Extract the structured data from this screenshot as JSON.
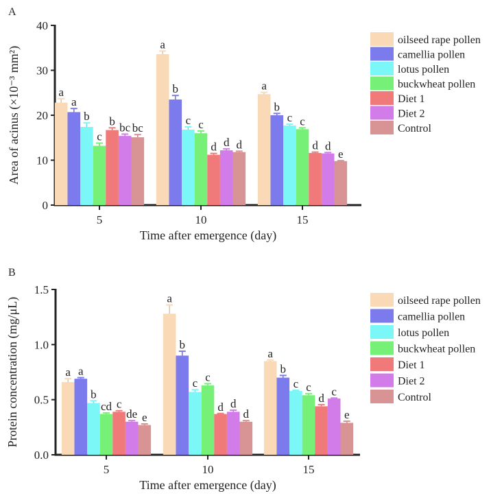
{
  "chart_data": [
    {
      "panel": "A",
      "type": "bar",
      "title": "",
      "xlabel": "Time after emergence (day)",
      "ylabel": "Area of acinus (×10⁻³ mm²)",
      "ylim": [
        0,
        40
      ],
      "yticks": [
        0,
        10,
        20,
        30,
        40
      ],
      "ytick_labels": [
        "0",
        "10",
        "20",
        "30",
        "40"
      ],
      "categories": [
        "5",
        "10",
        "15"
      ],
      "legend_position": "right",
      "series": [
        {
          "name": "oilseed rape pollen",
          "color": "#FAD9B6",
          "values": [
            22.8,
            33.6,
            24.7
          ],
          "errors": [
            0.9,
            0.7,
            0.4
          ],
          "letters": [
            "a",
            "a",
            "a"
          ]
        },
        {
          "name": "camellia pollen",
          "color": "#7B7BEE",
          "values": [
            20.7,
            23.5,
            20.0
          ],
          "errors": [
            0.8,
            0.9,
            0.4
          ],
          "letters": [
            "a",
            "b",
            "b"
          ]
        },
        {
          "name": "lotus pollen",
          "color": "#7CF7F7",
          "values": [
            17.4,
            16.8,
            17.7
          ],
          "errors": [
            0.9,
            0.6,
            0.3
          ],
          "letters": [
            "b",
            "c",
            "c"
          ]
        },
        {
          "name": "buckwheat pollen",
          "color": "#76F076",
          "values": [
            13.2,
            16.0,
            16.9
          ],
          "errors": [
            0.6,
            0.5,
            0.3
          ],
          "letters": [
            "c",
            "c",
            "c"
          ]
        },
        {
          "name": "Diet 1",
          "color": "#F07A7A",
          "values": [
            16.7,
            11.2,
            11.6
          ],
          "errors": [
            0.5,
            0.3,
            0.2
          ],
          "letters": [
            "b",
            "d",
            "d"
          ]
        },
        {
          "name": "Diet 2",
          "color": "#D17CE8",
          "values": [
            15.4,
            12.2,
            11.5
          ],
          "errors": [
            0.4,
            0.3,
            0.2
          ],
          "letters": [
            "bc",
            "d",
            "d"
          ]
        },
        {
          "name": "Control",
          "color": "#D89494",
          "values": [
            15.1,
            11.8,
            9.8
          ],
          "errors": [
            0.6,
            0.2,
            0.1
          ],
          "letters": [
            "bc",
            "d",
            "e"
          ]
        }
      ]
    },
    {
      "panel": "B",
      "type": "bar",
      "title": "",
      "xlabel": "Time after emergence (day)",
      "ylabel": "Protein concentration (mg/μL)",
      "ylim": [
        0,
        1.5
      ],
      "yticks": [
        0,
        0.5,
        1.0,
        1.5
      ],
      "ytick_labels": [
        "0.0",
        "0.5",
        "1.0",
        "1.5"
      ],
      "categories": [
        "5",
        "10",
        "15"
      ],
      "legend_position": "right",
      "series": [
        {
          "name": "oilseed rape pollen",
          "color": "#FAD9B6",
          "values": [
            0.66,
            1.28,
            0.85
          ],
          "errors": [
            0.03,
            0.08,
            0.01
          ],
          "letters": [
            "a",
            "a",
            "a"
          ]
        },
        {
          "name": "camellia pollen",
          "color": "#7B7BEE",
          "values": [
            0.69,
            0.9,
            0.7
          ],
          "errors": [
            0.01,
            0.04,
            0.02
          ],
          "letters": [
            "a",
            "b",
            "b"
          ]
        },
        {
          "name": "lotus pollen",
          "color": "#7CF7F7",
          "values": [
            0.47,
            0.57,
            0.58
          ],
          "errors": [
            0.02,
            0.02,
            0.005
          ],
          "letters": [
            "b",
            "c",
            "c"
          ]
        },
        {
          "name": "buckwheat pollen",
          "color": "#76F076",
          "values": [
            0.37,
            0.63,
            0.54
          ],
          "errors": [
            0.01,
            0.015,
            0.015
          ],
          "letters": [
            "cd",
            "c",
            "c"
          ]
        },
        {
          "name": "Diet 1",
          "color": "#F07A7A",
          "values": [
            0.39,
            0.37,
            0.44
          ],
          "errors": [
            0.01,
            0.005,
            0.015
          ],
          "letters": [
            "c",
            "d",
            "d"
          ]
        },
        {
          "name": "Diet 2",
          "color": "#D17CE8",
          "values": [
            0.3,
            0.39,
            0.51
          ],
          "errors": [
            0.01,
            0.015,
            0.005
          ],
          "letters": [
            "de",
            "d",
            "c"
          ]
        },
        {
          "name": "Control",
          "color": "#D89494",
          "values": [
            0.27,
            0.3,
            0.29
          ],
          "errors": [
            0.01,
            0.01,
            0.015
          ],
          "letters": [
            "e",
            "d",
            "e"
          ]
        }
      ]
    }
  ]
}
